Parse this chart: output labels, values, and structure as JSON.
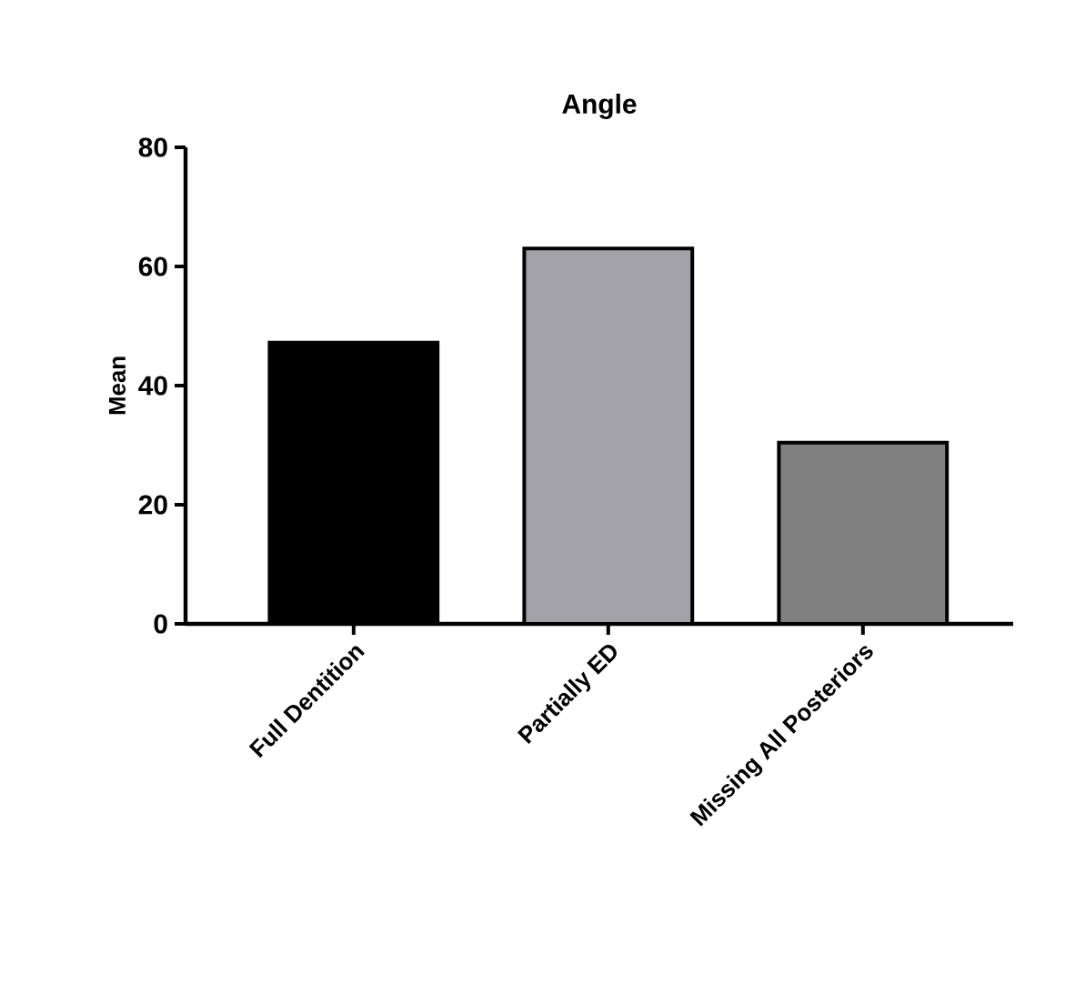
{
  "chart_data": {
    "type": "bar",
    "title": "Angle",
    "ylabel": "Mean",
    "categories": [
      "Full Dentition",
      "Partially ED",
      "Missing All Posteriors"
    ],
    "values": [
      47.2,
      63,
      30.4
    ],
    "colors": [
      "#000000",
      "#a3a2a8",
      "#808080"
    ],
    "ylim": [
      0,
      80
    ],
    "yticks": [
      0,
      20,
      40,
      60,
      80
    ]
  }
}
